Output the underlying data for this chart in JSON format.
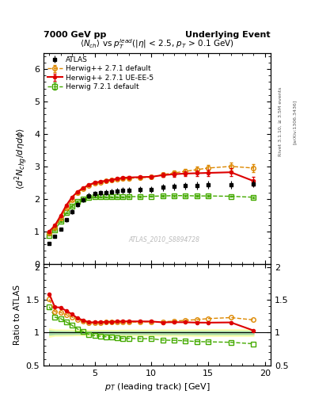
{
  "title_left": "7000 GeV pp",
  "title_right": "Underlying Event",
  "plot_title": "$\\langle N_{ch}\\rangle$ vs $p_T^{lead}$($|\\eta|$ < 2.5, $p_T$ > 0.1 GeV)",
  "xlabel": "$p_T$ (leading track) [GeV]",
  "ylabel_main": "$\\langle d^2 N_{chg}/d\\eta d\\phi \\rangle$",
  "ylabel_ratio": "Ratio to ATLAS",
  "watermark": "ATLAS_2010_S8894728",
  "atlas_x": [
    1.0,
    1.5,
    2.0,
    2.5,
    3.0,
    3.5,
    4.0,
    4.5,
    5.0,
    5.5,
    6.0,
    6.5,
    7.0,
    7.5,
    8.0,
    9.0,
    10.0,
    11.0,
    12.0,
    13.0,
    14.0,
    15.0,
    17.0,
    19.0
  ],
  "atlas_y": [
    0.63,
    0.85,
    1.07,
    1.35,
    1.6,
    1.82,
    1.97,
    2.1,
    2.16,
    2.18,
    2.2,
    2.22,
    2.24,
    2.26,
    2.27,
    2.28,
    2.29,
    2.36,
    2.38,
    2.4,
    2.42,
    2.43,
    2.44,
    2.47
  ],
  "atlas_yerr": [
    0.04,
    0.04,
    0.05,
    0.06,
    0.07,
    0.07,
    0.08,
    0.08,
    0.09,
    0.09,
    0.09,
    0.09,
    0.09,
    0.1,
    0.1,
    0.1,
    0.1,
    0.11,
    0.11,
    0.11,
    0.12,
    0.12,
    0.12,
    0.12
  ],
  "hw271_x": [
    1.0,
    1.5,
    2.0,
    2.5,
    3.0,
    3.5,
    4.0,
    4.5,
    5.0,
    5.5,
    6.0,
    6.5,
    7.0,
    7.5,
    8.0,
    9.0,
    10.0,
    11.0,
    12.0,
    13.0,
    14.0,
    15.0,
    17.0,
    19.0
  ],
  "hw271_y": [
    0.95,
    1.12,
    1.4,
    1.72,
    1.98,
    2.18,
    2.32,
    2.42,
    2.48,
    2.52,
    2.55,
    2.57,
    2.6,
    2.62,
    2.63,
    2.65,
    2.67,
    2.75,
    2.8,
    2.85,
    2.9,
    2.95,
    3.0,
    2.95
  ],
  "hw271_yerr": [
    0.02,
    0.02,
    0.03,
    0.03,
    0.03,
    0.03,
    0.03,
    0.03,
    0.03,
    0.03,
    0.03,
    0.03,
    0.03,
    0.03,
    0.04,
    0.04,
    0.05,
    0.06,
    0.07,
    0.08,
    0.09,
    0.1,
    0.12,
    0.13
  ],
  "hw271ue_x": [
    1.0,
    1.5,
    2.0,
    2.5,
    3.0,
    3.5,
    4.0,
    4.5,
    5.0,
    5.5,
    6.0,
    6.5,
    7.0,
    7.5,
    8.0,
    9.0,
    10.0,
    11.0,
    12.0,
    13.0,
    14.0,
    15.0,
    17.0,
    19.0
  ],
  "hw271ue_y": [
    1.0,
    1.18,
    1.48,
    1.8,
    2.05,
    2.22,
    2.34,
    2.43,
    2.5,
    2.53,
    2.56,
    2.59,
    2.62,
    2.65,
    2.66,
    2.67,
    2.68,
    2.73,
    2.76,
    2.78,
    2.79,
    2.8,
    2.82,
    2.55
  ],
  "hw271ue_yerr": [
    0.02,
    0.02,
    0.03,
    0.03,
    0.03,
    0.03,
    0.03,
    0.03,
    0.03,
    0.03,
    0.03,
    0.03,
    0.04,
    0.04,
    0.04,
    0.04,
    0.05,
    0.06,
    0.07,
    0.08,
    0.09,
    0.1,
    0.12,
    0.14
  ],
  "hw721_x": [
    1.0,
    1.5,
    2.0,
    2.5,
    3.0,
    3.5,
    4.0,
    4.5,
    5.0,
    5.5,
    6.0,
    6.5,
    7.0,
    7.5,
    8.0,
    9.0,
    10.0,
    11.0,
    12.0,
    13.0,
    14.0,
    15.0,
    17.0,
    19.0
  ],
  "hw721_y": [
    0.88,
    1.05,
    1.3,
    1.57,
    1.78,
    1.92,
    2.0,
    2.04,
    2.06,
    2.06,
    2.06,
    2.06,
    2.06,
    2.06,
    2.07,
    2.07,
    2.08,
    2.09,
    2.1,
    2.1,
    2.09,
    2.09,
    2.08,
    2.05
  ],
  "hw721_yerr": [
    0.02,
    0.02,
    0.02,
    0.02,
    0.02,
    0.02,
    0.02,
    0.02,
    0.02,
    0.02,
    0.02,
    0.02,
    0.02,
    0.02,
    0.02,
    0.02,
    0.02,
    0.02,
    0.02,
    0.02,
    0.02,
    0.02,
    0.02,
    0.02
  ],
  "color_atlas": "#000000",
  "color_hw271": "#dd8800",
  "color_hw271ue": "#dd0000",
  "color_hw721": "#44aa00",
  "band_yellow": "#ffffaa",
  "band_green": "#aaddaa",
  "ylim_main": [
    0.0,
    6.5
  ],
  "ylim_ratio": [
    0.5,
    2.05
  ],
  "xlim": [
    0.5,
    20.5
  ],
  "xticks": [
    5,
    10,
    15,
    20
  ],
  "yticks_main": [
    0,
    1,
    2,
    3,
    4,
    5,
    6
  ],
  "yticks_ratio": [
    0.5,
    1.0,
    1.5,
    2.0
  ]
}
